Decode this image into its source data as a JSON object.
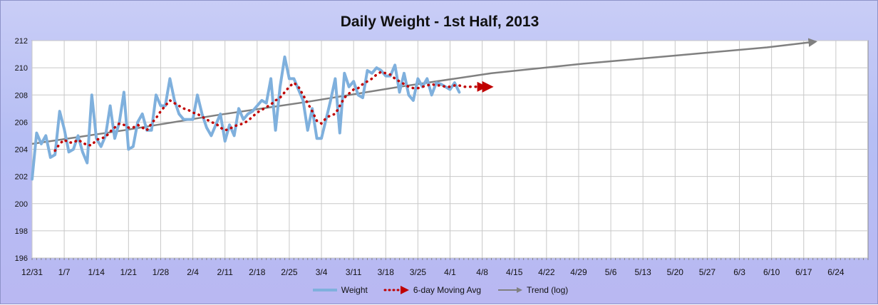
{
  "chart_data": {
    "type": "line",
    "title": "Daily Weight - 1st Half, 2013",
    "xlabel": "",
    "ylabel": "",
    "ylim": [
      196,
      212
    ],
    "yticks": [
      196,
      198,
      200,
      202,
      204,
      206,
      208,
      210,
      212
    ],
    "xlim_days": [
      0,
      182
    ],
    "xtick_labels": [
      "12/31",
      "1/7",
      "1/14",
      "1/21",
      "1/28",
      "2/4",
      "2/11",
      "2/18",
      "2/25",
      "3/4",
      "3/11",
      "3/18",
      "3/25",
      "4/1",
      "4/8",
      "4/15",
      "4/22",
      "4/29",
      "5/6",
      "5/13",
      "5/20",
      "5/27",
      "6/3",
      "6/10",
      "6/17",
      "6/24"
    ],
    "grid": true,
    "legend_position": "bottom",
    "series": [
      {
        "name": "Weight",
        "color": "#7fb0dd",
        "style": "solid",
        "x": [
          0,
          1,
          2,
          3,
          4,
          5,
          6,
          7,
          8,
          9,
          10,
          11,
          12,
          13,
          14,
          15,
          16,
          17,
          18,
          19,
          20,
          21,
          22,
          23,
          24,
          25,
          26,
          27,
          28,
          29,
          30,
          31,
          32,
          33,
          34,
          35,
          36,
          37,
          38,
          39,
          40,
          41,
          42,
          43,
          44,
          45,
          46,
          47,
          48,
          49,
          50,
          51,
          52,
          53,
          54,
          55,
          56,
          57,
          58,
          59,
          60,
          61,
          62,
          63,
          64,
          65,
          66,
          67,
          68,
          69,
          70,
          71,
          72,
          73,
          74,
          75,
          76,
          77,
          78,
          79,
          80,
          81,
          82,
          83,
          84,
          85,
          86,
          87,
          88,
          89,
          90,
          91,
          92,
          93
        ],
        "y": [
          201.8,
          205.2,
          204.4,
          205.0,
          203.4,
          203.6,
          206.8,
          205.5,
          203.8,
          204.0,
          205.0,
          203.8,
          203.0,
          208.0,
          204.8,
          204.2,
          205.0,
          207.2,
          204.8,
          206.0,
          208.2,
          204.0,
          204.2,
          206.0,
          206.6,
          205.4,
          205.4,
          208.0,
          207.2,
          207.2,
          209.2,
          207.6,
          206.6,
          206.2,
          206.2,
          206.2,
          208.0,
          206.6,
          205.6,
          205.0,
          205.8,
          206.6,
          204.6,
          205.8,
          205.0,
          207.0,
          206.2,
          206.6,
          206.8,
          207.2,
          207.6,
          207.4,
          209.2,
          205.4,
          208.6,
          210.8,
          209.2,
          209.2,
          208.4,
          207.6,
          205.4,
          207.0,
          204.8,
          204.8,
          206.2,
          207.6,
          209.2,
          205.2,
          209.6,
          208.6,
          209.0,
          208.0,
          207.8,
          209.8,
          209.6,
          210.0,
          209.8,
          209.4,
          209.4,
          210.2,
          208.2,
          209.6,
          208.0,
          207.6,
          209.2,
          208.6,
          209.2,
          208.0,
          208.9,
          208.8,
          208.6,
          208.4,
          208.9,
          208.2
        ]
      },
      {
        "name": "6-day Moving Avg",
        "color": "#c00000",
        "style": "dotted",
        "x": [
          5,
          6,
          7,
          8,
          9,
          10,
          11,
          12,
          13,
          14,
          15,
          16,
          17,
          18,
          19,
          20,
          21,
          22,
          23,
          24,
          25,
          26,
          27,
          28,
          29,
          30,
          31,
          32,
          33,
          34,
          35,
          36,
          37,
          38,
          39,
          40,
          41,
          42,
          43,
          44,
          45,
          46,
          47,
          48,
          49,
          50,
          51,
          52,
          53,
          54,
          55,
          56,
          57,
          58,
          59,
          60,
          61,
          62,
          63,
          64,
          65,
          66,
          67,
          68,
          69,
          70,
          71,
          72,
          73,
          74,
          75,
          76,
          77,
          78,
          79,
          80,
          81,
          82,
          83,
          84,
          85,
          86,
          87,
          88,
          89,
          90,
          91,
          92,
          93,
          94,
          95,
          96,
          97,
          98
        ],
        "y": [
          203.9,
          204.4,
          204.7,
          204.5,
          204.5,
          204.7,
          204.5,
          204.3,
          204.3,
          204.7,
          204.8,
          204.9,
          205.3,
          205.6,
          205.9,
          205.8,
          205.6,
          205.6,
          205.8,
          205.6,
          205.4,
          205.9,
          206.3,
          206.8,
          207.2,
          207.6,
          207.4,
          207.2,
          207.0,
          206.9,
          206.7,
          206.6,
          206.4,
          206.2,
          206.0,
          205.9,
          205.6,
          205.4,
          205.5,
          205.7,
          205.8,
          205.9,
          206.1,
          206.4,
          206.7,
          206.9,
          207.1,
          207.3,
          207.6,
          207.8,
          208.2,
          208.6,
          208.9,
          208.6,
          208.0,
          207.4,
          206.8,
          206.1,
          205.9,
          206.3,
          206.5,
          206.6,
          207.2,
          207.8,
          208.1,
          208.4,
          208.5,
          208.8,
          209.0,
          209.2,
          209.5,
          209.7,
          209.6,
          209.5,
          209.2,
          209.0,
          208.8,
          208.6,
          208.5,
          208.5,
          208.6,
          208.7,
          208.8,
          208.7,
          208.7,
          208.6,
          208.6,
          208.7,
          208.7,
          208.6,
          208.6,
          208.6,
          208.6,
          208.6
        ]
      },
      {
        "name": "Trend (log)",
        "color": "#808080",
        "style": "solid-arrow",
        "x": [
          0,
          20,
          40,
          60,
          80,
          100,
          120,
          140,
          160,
          170
        ],
        "y": [
          204.4,
          205.4,
          206.5,
          207.5,
          208.6,
          209.6,
          210.3,
          210.9,
          211.5,
          211.9
        ]
      }
    ]
  }
}
